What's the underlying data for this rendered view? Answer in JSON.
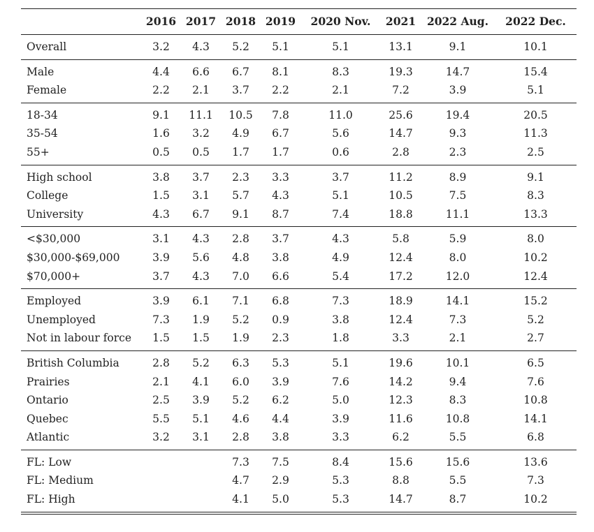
{
  "headers": [
    "",
    "2016",
    "2017",
    "2018",
    "2019",
    "2020 Nov.",
    "2021",
    "2022 Aug.",
    "2022 Dec."
  ],
  "groups": [
    {
      "rows": [
        {
          "label": "Overall",
          "values": [
            "3.2",
            "4.3",
            "5.2",
            "5.1",
            "5.1",
            "13.1",
            "9.1",
            "10.1"
          ]
        }
      ]
    },
    {
      "rows": [
        {
          "label": "Male",
          "values": [
            "4.4",
            "6.6",
            "6.7",
            "8.1",
            "8.3",
            "19.3",
            "14.7",
            "15.4"
          ]
        },
        {
          "label": "Female",
          "values": [
            "2.2",
            "2.1",
            "3.7",
            "2.2",
            "2.1",
            "7.2",
            "3.9",
            "5.1"
          ]
        }
      ]
    },
    {
      "rows": [
        {
          "label": "18-34",
          "values": [
            "9.1",
            "11.1",
            "10.5",
            "7.8",
            "11.0",
            "25.6",
            "19.4",
            "20.5"
          ]
        },
        {
          "label": "35-54",
          "values": [
            "1.6",
            "3.2",
            "4.9",
            "6.7",
            "5.6",
            "14.7",
            "9.3",
            "11.3"
          ]
        },
        {
          "label": "55+",
          "values": [
            "0.5",
            "0.5",
            "1.7",
            "1.7",
            "0.6",
            "2.8",
            "2.3",
            "2.5"
          ]
        }
      ]
    },
    {
      "rows": [
        {
          "label": "High school",
          "values": [
            "3.8",
            "3.7",
            "2.3",
            "3.3",
            "3.7",
            "11.2",
            "8.9",
            "9.1"
          ]
        },
        {
          "label": "College",
          "values": [
            "1.5",
            "3.1",
            "5.7",
            "4.3",
            "5.1",
            "10.5",
            "7.5",
            "8.3"
          ]
        },
        {
          "label": "University",
          "values": [
            "4.3",
            "6.7",
            "9.1",
            "8.7",
            "7.4",
            "18.8",
            "11.1",
            "13.3"
          ]
        }
      ]
    },
    {
      "rows": [
        {
          "label": "<$30,000",
          "values": [
            "3.1",
            "4.3",
            "2.8",
            "3.7",
            "4.3",
            "5.8",
            "5.9",
            "8.0"
          ]
        },
        {
          "label": "$30,000-$69,000",
          "values": [
            "3.9",
            "5.6",
            "4.8",
            "3.8",
            "4.9",
            "12.4",
            "8.0",
            "10.2"
          ]
        },
        {
          "label": "$70,000+",
          "values": [
            "3.7",
            "4.3",
            "7.0",
            "6.6",
            "5.4",
            "17.2",
            "12.0",
            "12.4"
          ]
        }
      ]
    },
    {
      "rows": [
        {
          "label": "Employed",
          "values": [
            "3.9",
            "6.1",
            "7.1",
            "6.8",
            "7.3",
            "18.9",
            "14.1",
            "15.2"
          ]
        },
        {
          "label": "Unemployed",
          "values": [
            "7.3",
            "1.9",
            "5.2",
            "0.9",
            "3.8",
            "12.4",
            "7.3",
            "5.2"
          ]
        },
        {
          "label": "Not in labour force",
          "values": [
            "1.5",
            "1.5",
            "1.9",
            "2.3",
            "1.8",
            "3.3",
            "2.1",
            "2.7"
          ]
        }
      ]
    },
    {
      "rows": [
        {
          "label": "British Columbia",
          "values": [
            "2.8",
            "5.2",
            "6.3",
            "5.3",
            "5.1",
            "19.6",
            "10.1",
            "6.5"
          ]
        },
        {
          "label": "Prairies",
          "values": [
            "2.1",
            "4.1",
            "6.0",
            "3.9",
            "7.6",
            "14.2",
            "9.4",
            "7.6"
          ]
        },
        {
          "label": "Ontario",
          "values": [
            "2.5",
            "3.9",
            "5.2",
            "6.2",
            "5.0",
            "12.3",
            "8.3",
            "10.8"
          ]
        },
        {
          "label": "Quebec",
          "values": [
            "5.5",
            "5.1",
            "4.6",
            "4.4",
            "3.9",
            "11.6",
            "10.8",
            "14.1"
          ]
        },
        {
          "label": "Atlantic",
          "values": [
            "3.2",
            "3.1",
            "2.8",
            "3.8",
            "3.3",
            "6.2",
            "5.5",
            "6.8"
          ]
        }
      ]
    },
    {
      "rows": [
        {
          "label": "FL: Low",
          "values": [
            "",
            "",
            "7.3",
            "7.5",
            "8.4",
            "15.6",
            "15.6",
            "13.6"
          ]
        },
        {
          "label": "FL: Medium",
          "values": [
            "",
            "",
            "4.7",
            "2.9",
            "5.3",
            "8.8",
            "5.5",
            "7.3"
          ]
        },
        {
          "label": "FL: High",
          "values": [
            "",
            "",
            "4.1",
            "5.0",
            "5.3",
            "14.7",
            "8.7",
            "10.2"
          ]
        }
      ]
    }
  ]
}
